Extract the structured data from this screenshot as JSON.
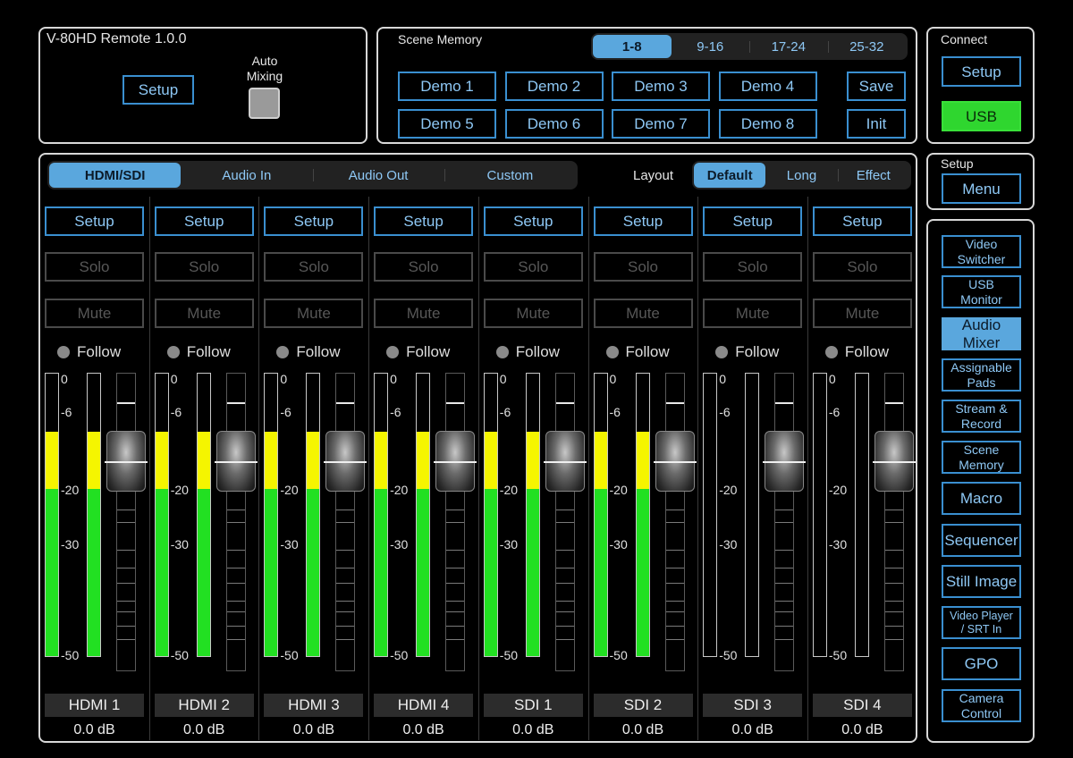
{
  "app": {
    "title": "V-80HD Remote 1.0.0",
    "setup_label": "Setup",
    "auto_mixing_label": "Auto\nMixing"
  },
  "scene_memory": {
    "title": "Scene Memory",
    "pages": [
      "1-8",
      "9-16",
      "17-24",
      "25-32"
    ],
    "selected_page": "1-8",
    "scenes": [
      "Demo 1",
      "Demo 2",
      "Demo 3",
      "Demo 4",
      "Demo 5",
      "Demo 6",
      "Demo 7",
      "Demo 8"
    ],
    "save_label": "Save",
    "init_label": "Init"
  },
  "connect": {
    "title": "Connect",
    "setup_label": "Setup",
    "usb_label": "USB",
    "usb_color": "#2fd62f"
  },
  "setup_box": {
    "title": "Setup",
    "menu_label": "Menu"
  },
  "mixer": {
    "tabs": [
      "HDMI/SDI",
      "Audio In",
      "Audio Out",
      "Custom"
    ],
    "selected_tab": "HDMI/SDI",
    "layout_label": "Layout",
    "layouts": [
      "Default",
      "Long",
      "Effect"
    ],
    "selected_layout": "Default",
    "scale_labels": [
      "0",
      "-6",
      "-20",
      "-30",
      "-50"
    ],
    "channels": [
      {
        "name": "HDMI 1",
        "db": "0.0 dB",
        "setup": "Setup",
        "solo": "Solo",
        "mute": "Mute",
        "follow": "Follow",
        "level": 0.79
      },
      {
        "name": "HDMI 2",
        "db": "0.0 dB",
        "setup": "Setup",
        "solo": "Solo",
        "mute": "Mute",
        "follow": "Follow",
        "level": 0.79
      },
      {
        "name": "HDMI 3",
        "db": "0.0 dB",
        "setup": "Setup",
        "solo": "Solo",
        "mute": "Mute",
        "follow": "Follow",
        "level": 0.79
      },
      {
        "name": "HDMI 4",
        "db": "0.0 dB",
        "setup": "Setup",
        "solo": "Solo",
        "mute": "Mute",
        "follow": "Follow",
        "level": 0.79
      },
      {
        "name": "SDI 1",
        "db": "0.0 dB",
        "setup": "Setup",
        "solo": "Solo",
        "mute": "Mute",
        "follow": "Follow",
        "level": 0.79
      },
      {
        "name": "SDI 2",
        "db": "0.0 dB",
        "setup": "Setup",
        "solo": "Solo",
        "mute": "Mute",
        "follow": "Follow",
        "level": 0.79
      },
      {
        "name": "SDI 3",
        "db": "0.0 dB",
        "setup": "Setup",
        "solo": "Solo",
        "mute": "Mute",
        "follow": "Follow",
        "level": 0
      },
      {
        "name": "SDI 4",
        "db": "0.0 dB",
        "setup": "Setup",
        "solo": "Solo",
        "mute": "Mute",
        "follow": "Follow",
        "level": 0
      }
    ]
  },
  "nav": {
    "items": [
      "Video\nSwitcher",
      "USB\nMonitor",
      "Audio Mixer",
      "Assignable\nPads",
      "Stream &\nRecord",
      "Scene\nMemory",
      "Macro",
      "Sequencer",
      "Still Image",
      "Video Player\n/ SRT In",
      "GPO",
      "Camera\nControl"
    ],
    "selected": "Audio Mixer"
  },
  "colors": {
    "accent": "#5aa7dd",
    "button_text": "#8ec8f5",
    "meter_green": "#22e022",
    "meter_yellow": "#f5f500"
  }
}
